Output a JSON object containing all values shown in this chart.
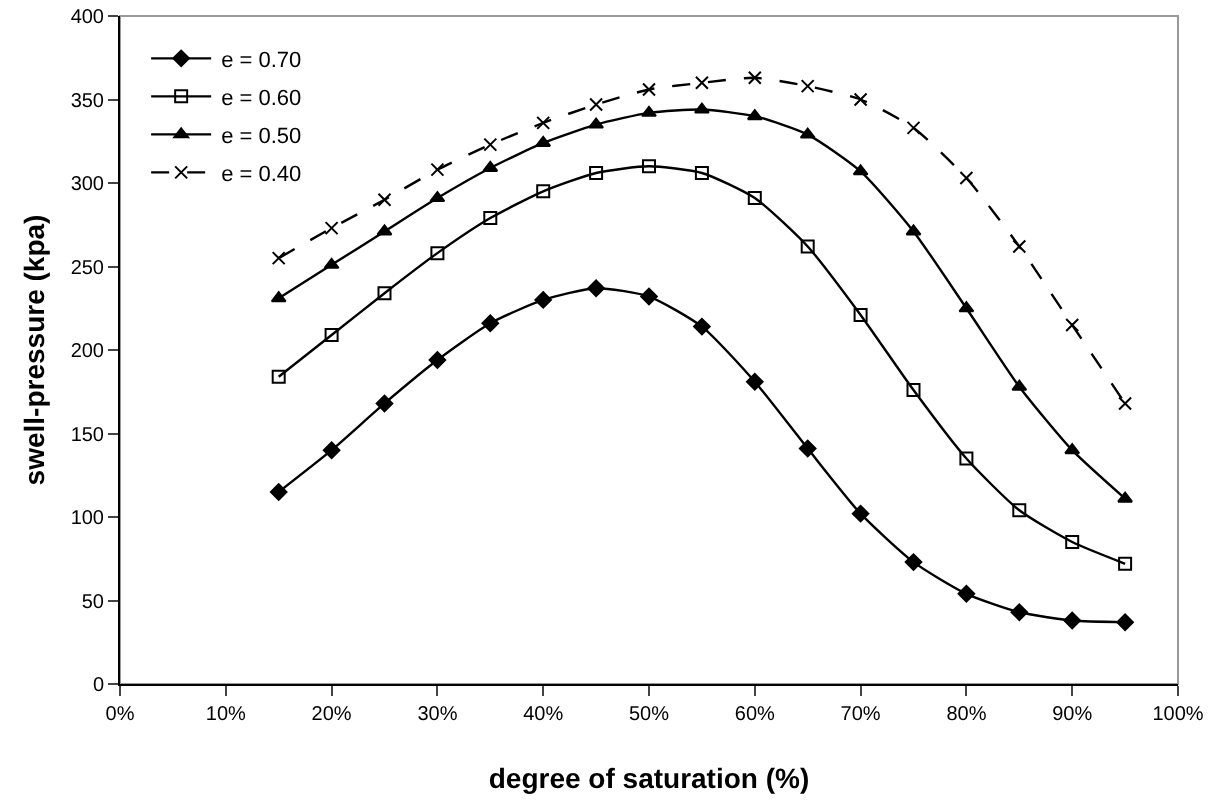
{
  "chart_data": {
    "type": "line",
    "xlabel": "degree of saturation (%)",
    "ylabel": "swell-pressure (kpa)",
    "x": [
      15,
      20,
      25,
      30,
      35,
      40,
      45,
      50,
      55,
      60,
      65,
      70,
      75,
      80,
      85,
      90,
      95
    ],
    "xlim": [
      0,
      100
    ],
    "xticks": [
      {
        "value": 0,
        "label": "0%"
      },
      {
        "value": 10,
        "label": "10%"
      },
      {
        "value": 20,
        "label": "20%"
      },
      {
        "value": 30,
        "label": "30%"
      },
      {
        "value": 40,
        "label": "40%"
      },
      {
        "value": 50,
        "label": "50%"
      },
      {
        "value": 60,
        "label": "60%"
      },
      {
        "value": 70,
        "label": "70%"
      },
      {
        "value": 80,
        "label": "80%"
      },
      {
        "value": 90,
        "label": "90%"
      },
      {
        "value": 100,
        "label": "100%"
      }
    ],
    "ylim": [
      0,
      400
    ],
    "yticks": [
      0,
      50,
      100,
      150,
      200,
      250,
      300,
      350,
      400
    ],
    "grid": false,
    "legend": "top left",
    "series": [
      {
        "name": "e = 0.70",
        "color": "#000000",
        "marker": "diamond",
        "line_style": "solid",
        "values": [
          115,
          140,
          168,
          194,
          216,
          230,
          237,
          232,
          214,
          181,
          141,
          102,
          73,
          54,
          43,
          38,
          37
        ]
      },
      {
        "name": "e = 0.60",
        "color": "#000000",
        "marker": "square",
        "line_style": "solid",
        "values": [
          184,
          209,
          234,
          258,
          279,
          295,
          306,
          310,
          306,
          291,
          262,
          221,
          176,
          135,
          104,
          85,
          72
        ]
      },
      {
        "name": "e = 0.50",
        "color": "#000000",
        "marker": "triangle",
        "line_style": "solid",
        "values": [
          231,
          251,
          271,
          291,
          309,
          324,
          335,
          342,
          344,
          340,
          329,
          307,
          271,
          225,
          178,
          140,
          111
        ]
      },
      {
        "name": "e = 0.40",
        "color": "#000000",
        "marker": "cross",
        "line_style": "dashed",
        "values": [
          255,
          273,
          290,
          308,
          323,
          336,
          347,
          356,
          360,
          363,
          358,
          350,
          333,
          303,
          262,
          215,
          168
        ]
      }
    ]
  }
}
